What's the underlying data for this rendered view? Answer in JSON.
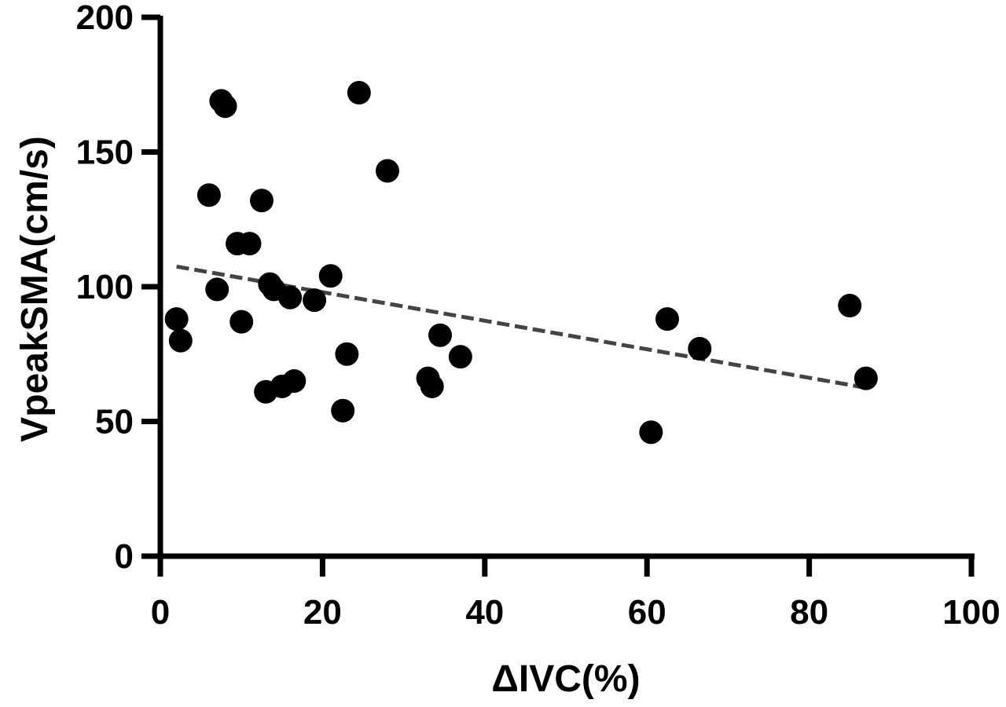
{
  "chart_data": {
    "type": "scatter",
    "title": "",
    "xlabel": "ΔIVC(%)",
    "ylabel": "VpeakSMA(cm/s)",
    "xlim": [
      0,
      100
    ],
    "ylim": [
      0,
      200
    ],
    "x_ticks": [
      "0",
      "20",
      "40",
      "60",
      "80",
      "100"
    ],
    "y_ticks": [
      "0",
      "50",
      "100",
      "150",
      "200"
    ],
    "grid": false,
    "legend": "none",
    "colors": {
      "points": "#000000",
      "axes": "#000000",
      "trendline": "#444444"
    },
    "trendline": {
      "style": "dashed",
      "x": [
        2,
        87
      ],
      "y": [
        107.5,
        62.5
      ]
    },
    "series": [
      {
        "x": [
          2,
          2.5,
          6,
          7,
          7.5,
          8,
          9.5,
          10,
          11,
          12.5,
          13,
          13.5,
          14,
          15,
          16,
          16.5,
          19,
          21,
          22.5,
          23,
          24.5,
          28,
          33,
          33.5,
          34.5,
          37,
          60.5,
          62.5,
          66.5,
          85,
          87
        ],
        "y": [
          88,
          80,
          134,
          99,
          169,
          167,
          116,
          87,
          116,
          132,
          61,
          101,
          99,
          63,
          96,
          65,
          95,
          104,
          54,
          75,
          172,
          143,
          66,
          63,
          82,
          74,
          46,
          88,
          77,
          93,
          66
        ]
      }
    ]
  }
}
